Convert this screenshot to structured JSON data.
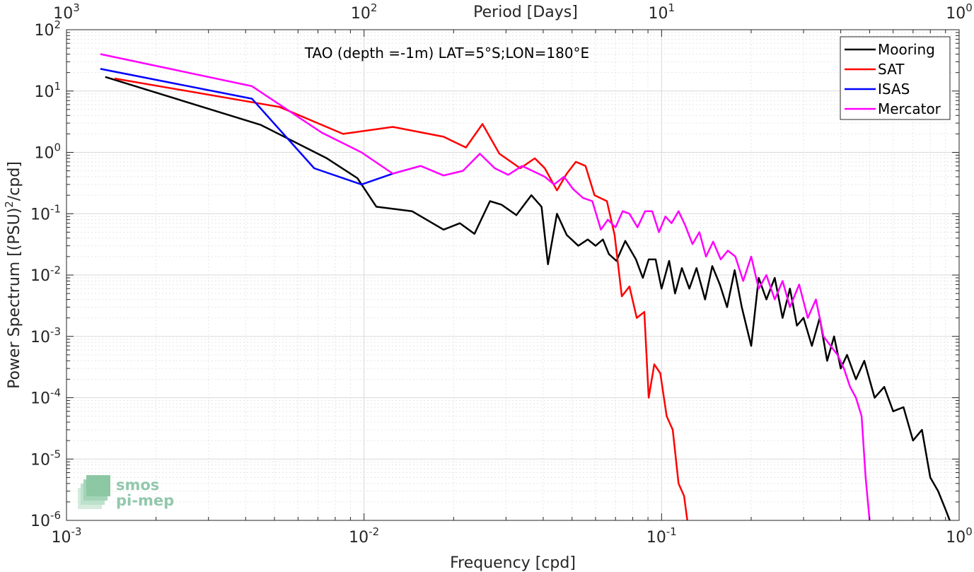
{
  "chart_data": {
    "type": "line",
    "title": "TAO (depth =-1m) LAT=5°S;LON=180°E",
    "xlabel": "Frequency [cpd]",
    "ylabel": "Power Spectrum [(PSU)²/cpd]",
    "ylabel_parts": [
      "Power Spectrum [(PSU)",
      "2",
      "/cpd]"
    ],
    "top_xlabel": "Period [Days]",
    "xscale": "log",
    "yscale": "log",
    "xlim": [
      0.001,
      1
    ],
    "ylim": [
      1e-06,
      100
    ],
    "grid": true,
    "legend_position": "top-right",
    "x_ticks": [
      {
        "base": "10",
        "exp": "-3"
      },
      {
        "base": "10",
        "exp": "-2"
      },
      {
        "base": "10",
        "exp": "-1"
      },
      {
        "base": "10",
        "exp": "0"
      }
    ],
    "y_ticks": [
      {
        "base": "10",
        "exp": "-6"
      },
      {
        "base": "10",
        "exp": "-5"
      },
      {
        "base": "10",
        "exp": "-4"
      },
      {
        "base": "10",
        "exp": "-3"
      },
      {
        "base": "10",
        "exp": "-2"
      },
      {
        "base": "10",
        "exp": "-1"
      },
      {
        "base": "10",
        "exp": "0"
      },
      {
        "base": "10",
        "exp": "1"
      },
      {
        "base": "10",
        "exp": "2"
      }
    ],
    "top_ticks": [
      {
        "base": "10",
        "exp": "3"
      },
      {
        "base": "10",
        "exp": "2"
      },
      {
        "base": "10",
        "exp": "1"
      },
      {
        "base": "10",
        "exp": "0"
      }
    ],
    "series": [
      {
        "name": "Mooring",
        "color": "#000000",
        "points": [
          [
            0.00135,
            17
          ],
          [
            0.0045,
            2.8
          ],
          [
            0.0075,
            0.8
          ],
          [
            0.0095,
            0.38
          ],
          [
            0.011,
            0.13
          ],
          [
            0.0145,
            0.11
          ],
          [
            0.0185,
            0.055
          ],
          [
            0.021,
            0.07
          ],
          [
            0.0235,
            0.047
          ],
          [
            0.0265,
            0.16
          ],
          [
            0.029,
            0.14
          ],
          [
            0.0325,
            0.095
          ],
          [
            0.0365,
            0.2
          ],
          [
            0.0395,
            0.13
          ],
          [
            0.0415,
            0.015
          ],
          [
            0.0445,
            0.1
          ],
          [
            0.048,
            0.045
          ],
          [
            0.0525,
            0.03
          ],
          [
            0.0565,
            0.038
          ],
          [
            0.06,
            0.03
          ],
          [
            0.0635,
            0.038
          ],
          [
            0.0665,
            0.022
          ],
          [
            0.0705,
            0.017
          ],
          [
            0.0755,
            0.036
          ],
          [
            0.082,
            0.018
          ],
          [
            0.0865,
            0.009
          ],
          [
            0.0905,
            0.018
          ],
          [
            0.0955,
            0.018
          ],
          [
            0.1,
            0.006
          ],
          [
            0.106,
            0.017
          ],
          [
            0.111,
            0.005
          ],
          [
            0.117,
            0.013
          ],
          [
            0.124,
            0.006
          ],
          [
            0.131,
            0.013
          ],
          [
            0.14,
            0.004
          ],
          [
            0.148,
            0.014
          ],
          [
            0.157,
            0.007
          ],
          [
            0.166,
            0.003
          ],
          [
            0.176,
            0.012
          ],
          [
            0.186,
            0.003
          ],
          [
            0.2,
            0.0007
          ],
          [
            0.212,
            0.009
          ],
          [
            0.225,
            0.004
          ],
          [
            0.24,
            0.009
          ],
          [
            0.255,
            0.002
          ],
          [
            0.27,
            0.006
          ],
          [
            0.285,
            0.0015
          ],
          [
            0.3,
            0.002
          ],
          [
            0.32,
            0.0007
          ],
          [
            0.34,
            0.002
          ],
          [
            0.36,
            0.0004
          ],
          [
            0.38,
            0.001
          ],
          [
            0.4,
            0.0003
          ],
          [
            0.42,
            0.0005
          ],
          [
            0.45,
            0.0002
          ],
          [
            0.48,
            0.0004
          ],
          [
            0.52,
            0.0001
          ],
          [
            0.56,
            0.00015
          ],
          [
            0.6,
            6e-05
          ],
          [
            0.65,
            7e-05
          ],
          [
            0.7,
            2e-05
          ],
          [
            0.75,
            3e-05
          ],
          [
            0.8,
            5e-06
          ],
          [
            0.85,
            3e-06
          ],
          [
            0.9,
            1.5e-06
          ],
          [
            0.93,
            1e-06
          ]
        ]
      },
      {
        "name": "SAT",
        "color": "#ff0000",
        "points": [
          [
            0.00145,
            16
          ],
          [
            0.0052,
            5.5
          ],
          [
            0.0085,
            2
          ],
          [
            0.0125,
            2.6
          ],
          [
            0.0185,
            1.8
          ],
          [
            0.022,
            1.2
          ],
          [
            0.025,
            2.9
          ],
          [
            0.0285,
            0.95
          ],
          [
            0.0335,
            0.55
          ],
          [
            0.0375,
            0.8
          ],
          [
            0.0405,
            0.55
          ],
          [
            0.0445,
            0.24
          ],
          [
            0.048,
            0.45
          ],
          [
            0.0515,
            0.7
          ],
          [
            0.0555,
            0.6
          ],
          [
            0.0595,
            0.2
          ],
          [
            0.0655,
            0.16
          ],
          [
            0.0695,
            0.045
          ],
          [
            0.0735,
            0.0045
          ],
          [
            0.078,
            0.0065
          ],
          [
            0.0825,
            0.002
          ],
          [
            0.0875,
            0.0025
          ],
          [
            0.0905,
            0.0001
          ],
          [
            0.0945,
            0.00035
          ],
          [
            0.099,
            0.00025
          ],
          [
            0.104,
            5e-05
          ],
          [
            0.109,
            3e-05
          ],
          [
            0.114,
            4e-06
          ],
          [
            0.119,
            2.5e-06
          ],
          [
            0.122,
            1e-06
          ]
        ]
      },
      {
        "name": "ISAS",
        "color": "#0000ff",
        "points": [
          [
            0.0013,
            23
          ],
          [
            0.0042,
            7.5
          ],
          [
            0.0068,
            0.55
          ],
          [
            0.0098,
            0.3
          ],
          [
            0.0125,
            0.45
          ],
          [
            0.0155,
            0.6
          ]
        ]
      },
      {
        "name": "Mercator",
        "color": "#ff00ff",
        "points": [
          [
            0.0013,
            40
          ],
          [
            0.0042,
            12
          ],
          [
            0.0072,
            2.1
          ],
          [
            0.0098,
            1
          ],
          [
            0.0125,
            0.45
          ],
          [
            0.0155,
            0.6
          ],
          [
            0.0185,
            0.42
          ],
          [
            0.0215,
            0.5
          ],
          [
            0.0245,
            0.95
          ],
          [
            0.0275,
            0.55
          ],
          [
            0.0305,
            0.43
          ],
          [
            0.034,
            0.6
          ],
          [
            0.0375,
            0.48
          ],
          [
            0.0405,
            0.4
          ],
          [
            0.0435,
            0.3
          ],
          [
            0.047,
            0.4
          ],
          [
            0.0505,
            0.25
          ],
          [
            0.0545,
            0.18
          ],
          [
            0.0585,
            0.16
          ],
          [
            0.0625,
            0.055
          ],
          [
            0.066,
            0.08
          ],
          [
            0.07,
            0.06
          ],
          [
            0.074,
            0.11
          ],
          [
            0.078,
            0.1
          ],
          [
            0.083,
            0.06
          ],
          [
            0.088,
            0.11
          ],
          [
            0.093,
            0.11
          ],
          [
            0.098,
            0.05
          ],
          [
            0.103,
            0.09
          ],
          [
            0.108,
            0.07
          ],
          [
            0.114,
            0.11
          ],
          [
            0.12,
            0.065
          ],
          [
            0.127,
            0.032
          ],
          [
            0.134,
            0.05
          ],
          [
            0.141,
            0.02
          ],
          [
            0.149,
            0.035
          ],
          [
            0.158,
            0.018
          ],
          [
            0.167,
            0.025
          ],
          [
            0.177,
            0.02
          ],
          [
            0.188,
            0.008
          ],
          [
            0.2,
            0.02
          ],
          [
            0.212,
            0.006
          ],
          [
            0.225,
            0.01
          ],
          [
            0.24,
            0.004
          ],
          [
            0.255,
            0.008
          ],
          [
            0.27,
            0.003
          ],
          [
            0.29,
            0.007
          ],
          [
            0.31,
            0.002
          ],
          [
            0.33,
            0.004
          ],
          [
            0.35,
            0.001
          ],
          [
            0.37,
            0.0007
          ],
          [
            0.39,
            0.0005
          ],
          [
            0.41,
            0.0003
          ],
          [
            0.43,
            0.00015
          ],
          [
            0.45,
            0.0001
          ],
          [
            0.47,
            5e-05
          ],
          [
            0.485,
            5e-06
          ],
          [
            0.5,
            1e-06
          ]
        ]
      }
    ]
  },
  "watermark": {
    "line1": "smos",
    "line2": "pi-mep"
  }
}
